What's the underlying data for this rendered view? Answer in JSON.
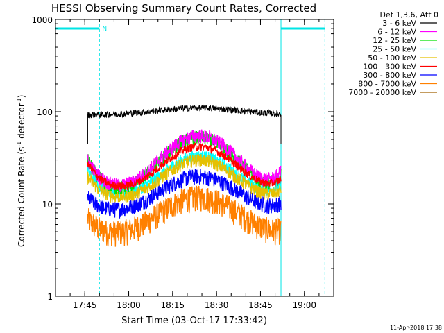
{
  "chart_data": {
    "type": "line",
    "title": "HESSI Observing Summary Count Rates, Corrected",
    "xlabel": "Start Time (03-Oct-17 17:33:42)",
    "ylabel_main": "Corrected Count Rate (s",
    "ylabel_sup1": "-1",
    "ylabel_mid": " detector",
    "ylabel_sup2": "-1",
    "ylabel_end": ")",
    "y_scale": "log",
    "ylim": [
      1,
      1000
    ],
    "xlim": [
      "17:35:00",
      "19:10:00"
    ],
    "x_ticks": [
      {
        "t": "17:45:00",
        "label": "17:45"
      },
      {
        "t": "18:00:00",
        "label": "18:00"
      },
      {
        "t": "18:15:00",
        "label": "18:15"
      },
      {
        "t": "18:30:00",
        "label": "18:30"
      },
      {
        "t": "18:45:00",
        "label": "18:45"
      },
      {
        "t": "19:00:00",
        "label": "19:00"
      }
    ],
    "y_ticks": [
      {
        "v": 1,
        "label": "1"
      },
      {
        "v": 10,
        "label": "10"
      },
      {
        "v": 100,
        "label": "100"
      },
      {
        "v": 1000,
        "label": "1000"
      }
    ],
    "legend_header": "Det 1,3,6, Att 0",
    "legend_placement": "right",
    "footer_date": "11-Apr-2018 17:38",
    "night_label": "N",
    "night_bars": [
      {
        "start": "17:35:00",
        "end": "17:50:00"
      },
      {
        "start": "18:52:00",
        "end": "19:07:00"
      }
    ],
    "night_color": "#00e5e5",
    "series": [
      {
        "name": "3 - 6 keV",
        "color": "#000000",
        "start": "17:46:00",
        "end": "18:52:00",
        "base": 92,
        "peak_time": "18:24:00",
        "peak": 110,
        "width_min": 14,
        "noise": 0.04
      },
      {
        "name": "6 - 12 keV",
        "color": "#ff00ff",
        "start": "17:46:00",
        "end": "18:52:00",
        "base": 14,
        "peak_time": "18:24:00",
        "peak": 55,
        "width_min": 10,
        "noise": 0.09,
        "start_val": 30,
        "end_val": 22
      },
      {
        "name": "12 - 25 keV",
        "color": "#00e000",
        "start": "17:46:00",
        "end": "18:52:00",
        "base": 13,
        "peak_time": "18:24:00",
        "peak": 53,
        "width_min": 10,
        "noise": 0.09,
        "start_val": 30,
        "end_val": 20
      },
      {
        "name": "25 - 50 keV",
        "color": "#00ffff",
        "start": "17:46:00",
        "end": "18:52:00",
        "base": 12,
        "peak_time": "18:24:00",
        "peak": 33,
        "width_min": 10,
        "noise": 0.08,
        "start_val": 24,
        "end_val": 16
      },
      {
        "name": "50 - 100 keV",
        "color": "#e5c000",
        "start": "17:46:00",
        "end": "18:52:00",
        "base": 11,
        "peak_time": "18:24:00",
        "peak": 30,
        "width_min": 10,
        "noise": 0.08,
        "start_val": 20,
        "end_val": 14
      },
      {
        "name": "100 - 300 keV",
        "color": "#ff0000",
        "start": "17:46:00",
        "end": "18:52:00",
        "base": 14,
        "peak_time": "18:24:00",
        "peak": 42,
        "width_min": 10,
        "noise": 0.05,
        "start_val": 28,
        "end_val": 18
      },
      {
        "name": "300 - 800 keV",
        "color": "#0000ff",
        "start": "17:46:00",
        "end": "18:52:00",
        "base": 8,
        "peak_time": "18:24:00",
        "peak": 20,
        "width_min": 11,
        "noise": 0.1,
        "start_val": 12,
        "end_val": 10
      },
      {
        "name": "800 - 7000 keV",
        "color": "#ff8000",
        "start": "17:46:00",
        "end": "18:52:00",
        "base": 4.5,
        "peak_time": "18:24:00",
        "peak": 12,
        "width_min": 11,
        "noise": 0.16,
        "start_val": 7,
        "end_val": 5
      },
      {
        "name": "7000 - 20000 keV",
        "color": "#a06000",
        "start": "17:46:00",
        "end": "18:52:00",
        "base": 0,
        "peak_time": "18:24:00",
        "peak": 0,
        "width_min": 1,
        "noise": 0
      }
    ]
  }
}
